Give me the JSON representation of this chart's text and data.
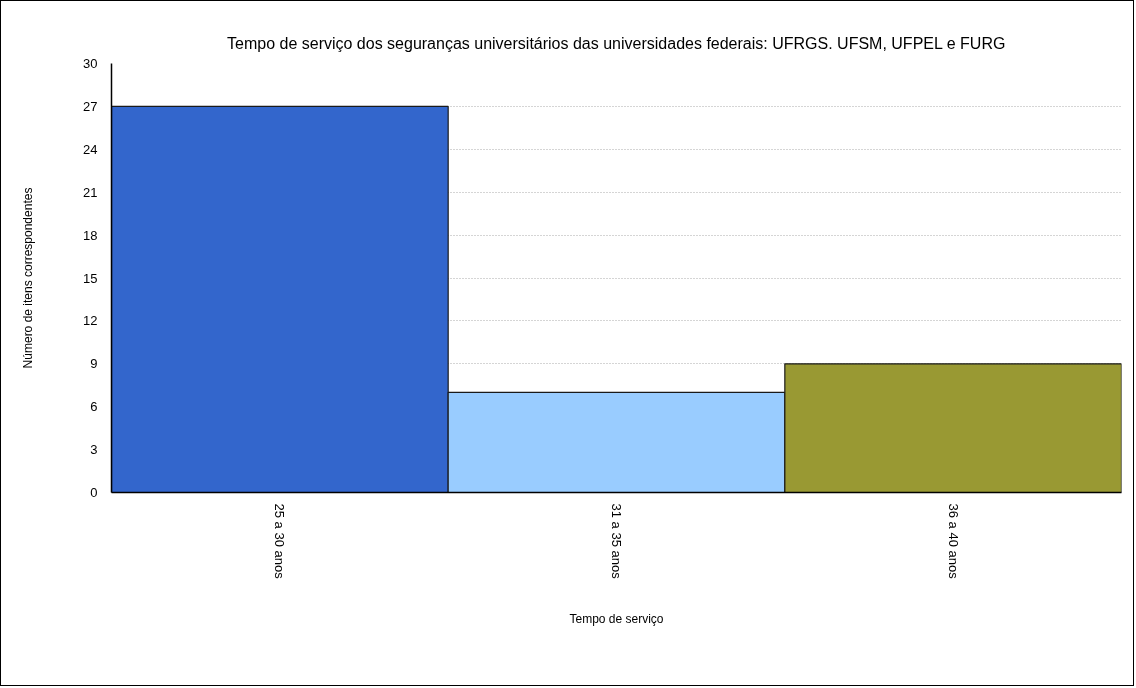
{
  "chart_data": {
    "type": "bar",
    "title": "Tempo de serviço dos seguranças universitários das universidades federais: UFRGS. UFSM, UFPEL e FURG",
    "xlabel": "Tempo de serviço",
    "ylabel": "Número de itens correspondentes",
    "categories": [
      "25 a 30 anos",
      "31 a 35 anos",
      "36 a 40 anos"
    ],
    "values": [
      27,
      7,
      9
    ],
    "colors": [
      "#3366cc",
      "#99ccff",
      "#999933"
    ],
    "ylim": [
      0,
      30
    ],
    "yticks": [
      0,
      3,
      6,
      9,
      12,
      15,
      18,
      21,
      24,
      27,
      30
    ],
    "grid": "y"
  }
}
